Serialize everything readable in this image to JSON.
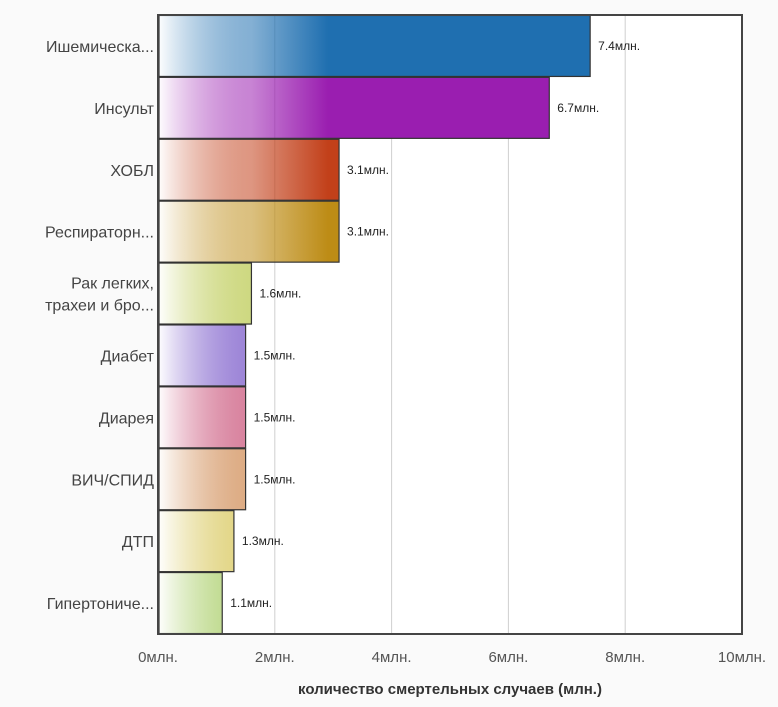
{
  "chart_data": {
    "type": "bar",
    "orientation": "horizontal",
    "categories": [
      [
        "Ишемическа..."
      ],
      [
        "Инсульт"
      ],
      [
        "ХОБЛ"
      ],
      [
        "Респираторн..."
      ],
      [
        "Рак легких,",
        "трахеи и бро..."
      ],
      [
        "Диабет"
      ],
      [
        "Диарея"
      ],
      [
        "ВИЧ/СПИД"
      ],
      [
        "ДТП"
      ],
      [
        "Гипертониче..."
      ]
    ],
    "values": [
      7.4,
      6.7,
      3.1,
      3.1,
      1.6,
      1.5,
      1.5,
      1.5,
      1.3,
      1.1
    ],
    "value_labels": [
      "7.4млн.",
      "6.7млн.",
      "3.1млн.",
      "3.1млн.",
      "1.6млн.",
      "1.5млн.",
      "1.5млн.",
      "1.5млн.",
      "1.3млн.",
      "1.1млн."
    ],
    "colors": [
      "#1f6fb0",
      "#9a1eb0",
      "#c2401a",
      "#bd8c16",
      "#a6b91a",
      "#4a1eb6",
      "#b81b4e",
      "#c0651b",
      "#c8b018",
      "#7eb51c"
    ],
    "xlim": [
      0,
      10
    ],
    "xticks": [
      0,
      2,
      4,
      6,
      8,
      10
    ],
    "xtick_labels": [
      "0млн.",
      "2млн.",
      "4млн.",
      "6млн.",
      "8млн.",
      "10млн."
    ],
    "xlabel": "количество смертельных случаев (млн.)",
    "grid": "vertical"
  }
}
